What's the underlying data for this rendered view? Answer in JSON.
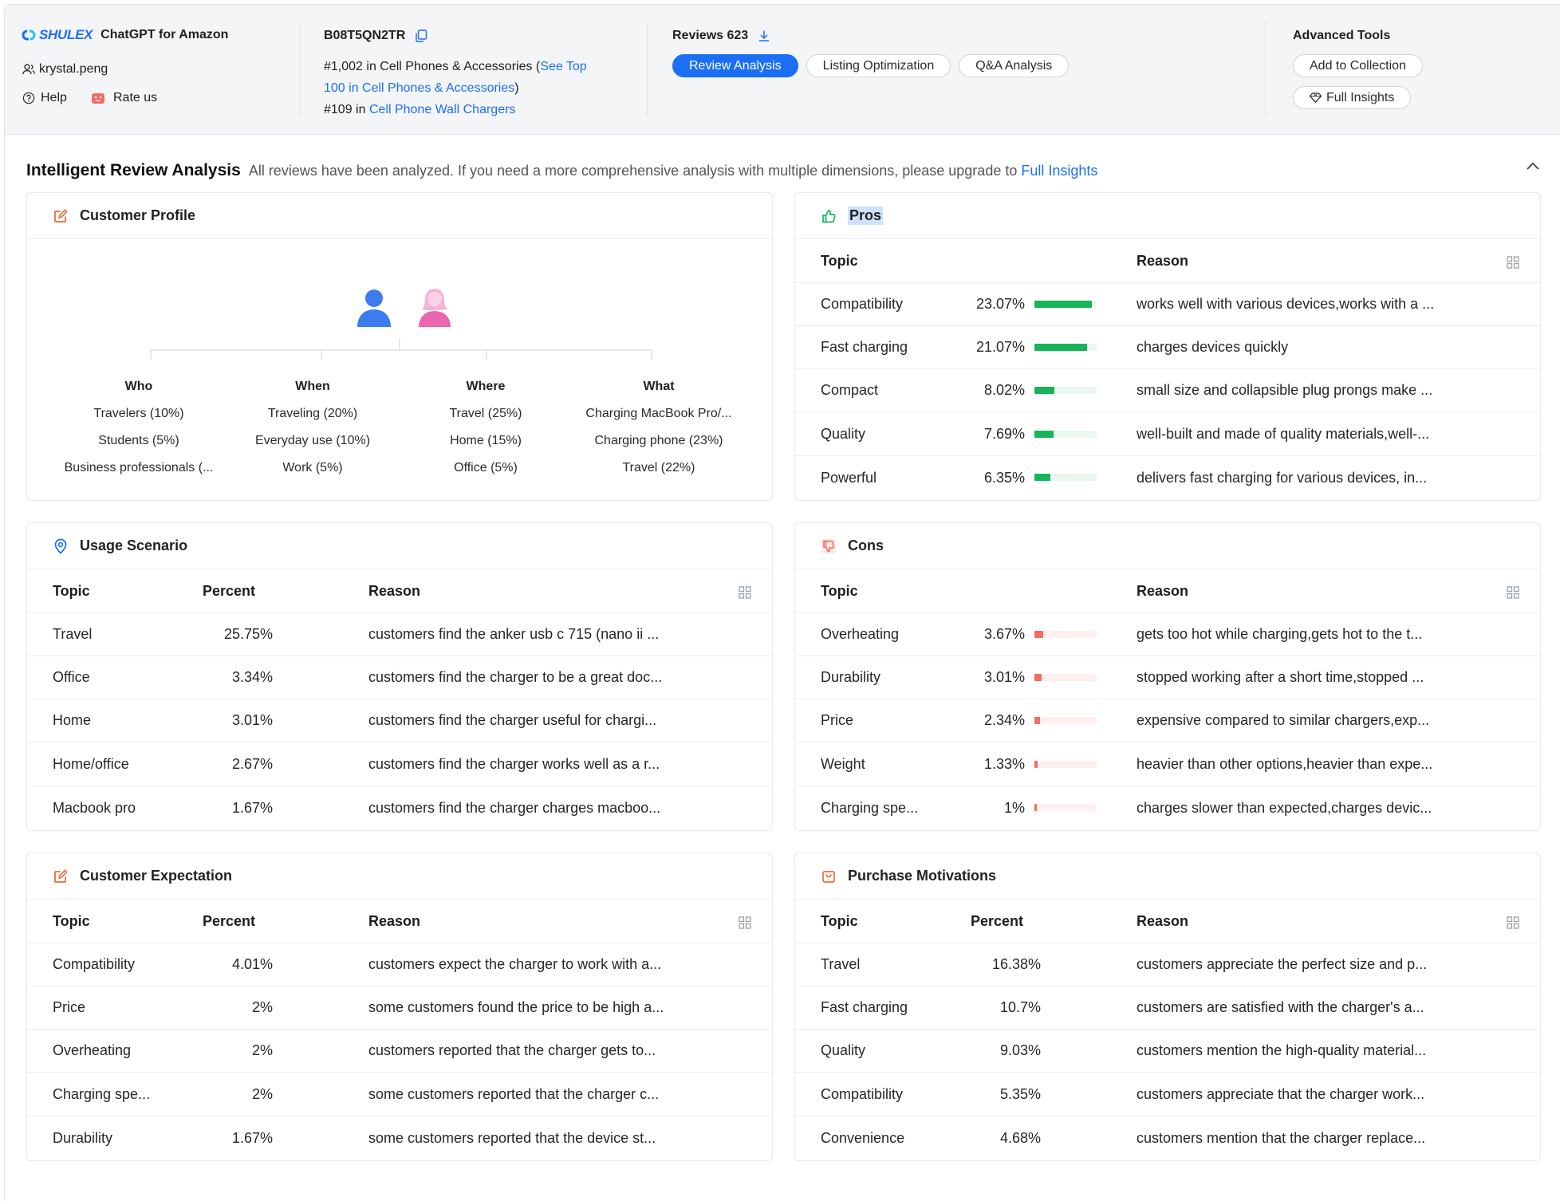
{
  "header": {
    "brand": "SHULEX",
    "app_title": "ChatGPT for Amazon",
    "user": "krystal.peng",
    "help": "Help",
    "rate_us": "Rate us",
    "asin": "B08T5QN2TR",
    "rank1_prefix": "#1,002 in Cell Phones & Accessories (",
    "rank1_link_a": "See Top",
    "rank1_link_b": "100 in Cell Phones & Accessories",
    "rank1_suffix": ")",
    "rank2_prefix": "#109 in ",
    "rank2_link": "Cell Phone Wall Chargers",
    "reviews_label": "Reviews 623",
    "tabs": [
      "Review Analysis",
      "Listing Optimization",
      "Q&A Analysis"
    ],
    "tools_title": "Advanced Tools",
    "add_collection": "Add to Collection",
    "full_insights": "Full Insights"
  },
  "section": {
    "title": "Intelligent Review Analysis",
    "subtitle": "All reviews have been analyzed. If you need a more comprehensive analysis with multiple dimensions, please upgrade to",
    "subtitle_link": "Full Insights"
  },
  "customer_profile": {
    "title": "Customer Profile",
    "columns": [
      {
        "head": "Who",
        "items": [
          "Travelers (10%)",
          "Students (5%)",
          "Business professionals (..."
        ]
      },
      {
        "head": "When",
        "items": [
          "Traveling (20%)",
          "Everyday use (10%)",
          "Work (5%)"
        ]
      },
      {
        "head": "Where",
        "items": [
          "Travel (25%)",
          "Home (15%)",
          "Office (5%)"
        ]
      },
      {
        "head": "What",
        "items": [
          "Charging MacBook Pro/...",
          "Charging phone (23%)",
          "Travel (22%)"
        ]
      }
    ]
  },
  "pros": {
    "title": "Pros",
    "headers": {
      "topic": "Topic",
      "reason": "Reason"
    },
    "bar_color": "#17b45a",
    "rows": [
      {
        "topic": "Compatibility",
        "percent": "23.07%",
        "value": 23.07,
        "reason": "works well with various devices,works with a ..."
      },
      {
        "topic": "Fast charging",
        "percent": "21.07%",
        "value": 21.07,
        "reason": "charges devices quickly"
      },
      {
        "topic": "Compact",
        "percent": "8.02%",
        "value": 8.02,
        "reason": "small size and collapsible plug prongs make ..."
      },
      {
        "topic": "Quality",
        "percent": "7.69%",
        "value": 7.69,
        "reason": "well-built and made of quality materials,well-..."
      },
      {
        "topic": "Powerful",
        "percent": "6.35%",
        "value": 6.35,
        "reason": "delivers fast charging for various devices, in..."
      }
    ]
  },
  "usage": {
    "title": "Usage Scenario",
    "headers": {
      "topic": "Topic",
      "percent": "Percent",
      "reason": "Reason"
    },
    "rows": [
      {
        "topic": "Travel",
        "percent": "25.75%",
        "reason": "customers find the anker usb c 715 (nano ii ..."
      },
      {
        "topic": "Office",
        "percent": "3.34%",
        "reason": "customers find the charger to be a great doc..."
      },
      {
        "topic": "Home",
        "percent": "3.01%",
        "reason": "customers find the charger useful for chargi..."
      },
      {
        "topic": "Home/office",
        "percent": "2.67%",
        "reason": "customers find the charger works well as a r..."
      },
      {
        "topic": "Macbook pro",
        "percent": "1.67%",
        "reason": "customers find the charger charges macboo..."
      }
    ]
  },
  "cons": {
    "title": "Cons",
    "headers": {
      "topic": "Topic",
      "reason": "Reason"
    },
    "bar_color": "#f56b62",
    "rows": [
      {
        "topic": "Overheating",
        "percent": "3.67%",
        "value": 3.67,
        "reason": "gets too hot while charging,gets hot to the t..."
      },
      {
        "topic": "Durability",
        "percent": "3.01%",
        "value": 3.01,
        "reason": "stopped working after a short time,stopped ..."
      },
      {
        "topic": "Price",
        "percent": "2.34%",
        "value": 2.34,
        "reason": "expensive compared to similar chargers,exp..."
      },
      {
        "topic": "Weight",
        "percent": "1.33%",
        "value": 1.33,
        "reason": "heavier than other options,heavier than expe..."
      },
      {
        "topic": "Charging spe...",
        "percent": "1%",
        "value": 1.0,
        "reason": "charges slower than expected,charges devic..."
      }
    ]
  },
  "expectation": {
    "title": "Customer Expectation",
    "headers": {
      "topic": "Topic",
      "percent": "Percent",
      "reason": "Reason"
    },
    "rows": [
      {
        "topic": "Compatibility",
        "percent": "4.01%",
        "reason": "customers expect the charger to work with a..."
      },
      {
        "topic": "Price",
        "percent": "2%",
        "reason": "some customers found the price to be high a..."
      },
      {
        "topic": "Overheating",
        "percent": "2%",
        "reason": "customers reported that the charger gets to..."
      },
      {
        "topic": "Charging spe...",
        "percent": "2%",
        "reason": "some customers reported that the charger c..."
      },
      {
        "topic": "Durability",
        "percent": "1.67%",
        "reason": "some customers reported that the device st..."
      }
    ]
  },
  "motivations": {
    "title": "Purchase Motivations",
    "headers": {
      "topic": "Topic",
      "percent": "Percent",
      "reason": "Reason"
    },
    "rows": [
      {
        "topic": "Travel",
        "percent": "16.38%",
        "reason": "customers appreciate the perfect size and p..."
      },
      {
        "topic": "Fast charging",
        "percent": "10.7%",
        "reason": "customers are satisfied with the charger's a..."
      },
      {
        "topic": "Quality",
        "percent": "9.03%",
        "reason": "customers mention the high-quality material..."
      },
      {
        "topic": "Compatibility",
        "percent": "5.35%",
        "reason": "customers appreciate that the charger work..."
      },
      {
        "topic": "Convenience",
        "percent": "4.68%",
        "reason": "customers mention that the charger replace..."
      }
    ]
  }
}
